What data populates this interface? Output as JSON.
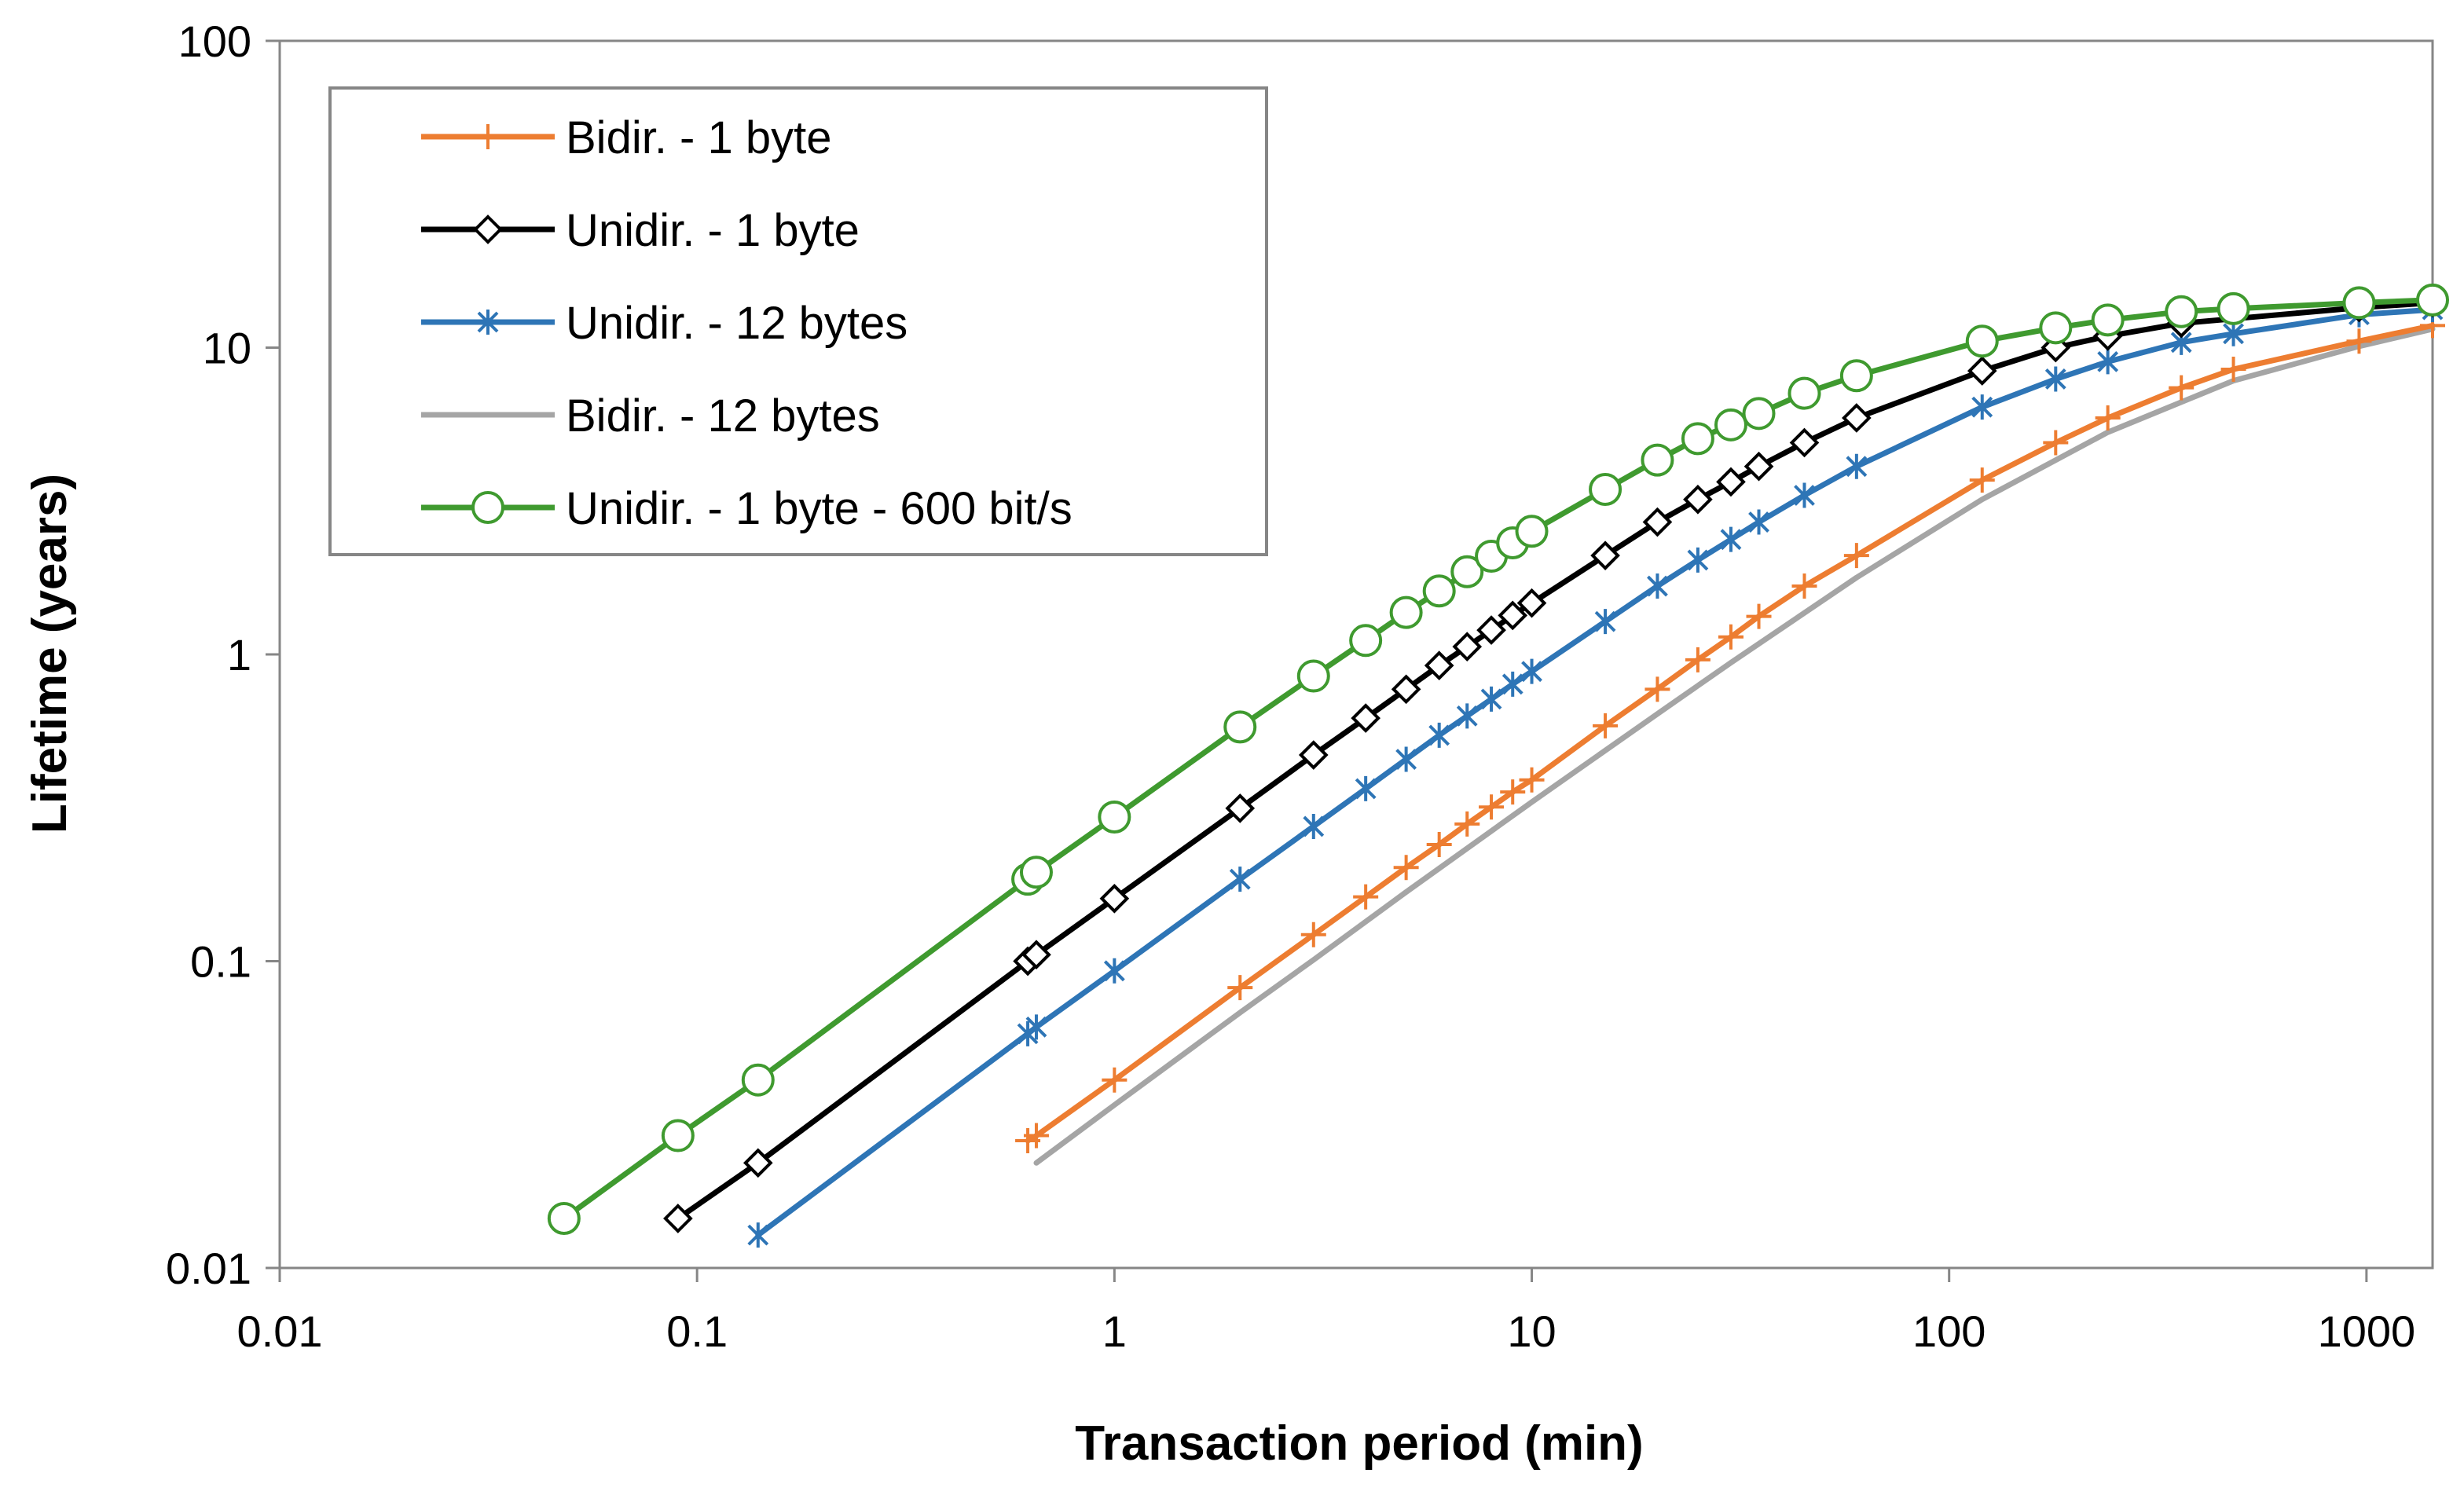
{
  "chart_data": {
    "type": "line",
    "title": "",
    "xlabel": "Transaction period (min)",
    "ylabel": "Lifetime (years)",
    "x_scale": "log",
    "y_scale": "log",
    "xlim": [
      0.01,
      1440
    ],
    "ylim": [
      0.01,
      100
    ],
    "x_tick_labels": [
      "0.01",
      "0.1",
      "1",
      "10",
      "100",
      "1000"
    ],
    "x_tick_values": [
      0.01,
      0.1,
      1,
      10,
      100,
      1000
    ],
    "y_tick_labels": [
      "0.01",
      "0.1",
      "1",
      "10",
      "100"
    ],
    "y_tick_values": [
      0.01,
      0.1,
      1,
      10,
      100
    ],
    "grid": false,
    "legend_position": "top-left",
    "series": [
      {
        "name": "Bidir. - 1 byte",
        "color": "#ED7D31",
        "marker": "plus",
        "x": [
          0.62,
          0.65,
          1,
          2,
          3,
          4,
          5,
          6,
          7,
          8,
          9,
          10,
          15,
          20,
          25,
          30,
          35,
          45,
          60,
          120,
          180,
          240,
          360,
          480,
          960,
          1440
        ],
        "y": [
          0.026,
          0.027,
          0.041,
          0.082,
          0.122,
          0.162,
          0.202,
          0.24,
          0.28,
          0.318,
          0.356,
          0.39,
          0.585,
          0.77,
          0.96,
          1.14,
          1.33,
          1.67,
          2.1,
          3.7,
          4.9,
          5.9,
          7.4,
          8.5,
          10.5,
          11.8
        ]
      },
      {
        "name": "Unidir. - 1 byte",
        "color": "#000000",
        "marker": "diamond",
        "x": [
          0.09,
          0.14,
          0.62,
          0.65,
          1,
          2,
          3,
          4,
          5,
          6,
          7,
          8,
          9,
          10,
          15,
          20,
          25,
          30,
          35,
          45,
          60,
          120,
          180,
          240,
          360,
          960,
          1440
        ],
        "y": [
          0.0145,
          0.022,
          0.1,
          0.105,
          0.16,
          0.315,
          0.47,
          0.62,
          0.77,
          0.92,
          1.06,
          1.2,
          1.34,
          1.47,
          2.1,
          2.7,
          3.2,
          3.65,
          4.1,
          4.9,
          5.9,
          8.4,
          10,
          10.9,
          12,
          13.5,
          14
        ]
      },
      {
        "name": "Unidir. - 12 bytes",
        "color": "#2E75B6",
        "marker": "asterisk",
        "x": [
          0.14,
          0.62,
          0.65,
          1,
          2,
          3,
          4,
          5,
          6,
          7,
          8,
          9,
          10,
          15,
          20,
          25,
          30,
          35,
          45,
          60,
          120,
          180,
          240,
          360,
          480,
          960,
          1440
        ],
        "y": [
          0.0128,
          0.058,
          0.061,
          0.093,
          0.185,
          0.275,
          0.365,
          0.455,
          0.545,
          0.63,
          0.715,
          0.8,
          0.88,
          1.28,
          1.67,
          2.03,
          2.37,
          2.7,
          3.3,
          4.1,
          6.4,
          7.9,
          9,
          10.4,
          11.1,
          12.8,
          13.3
        ]
      },
      {
        "name": "Bidir. - 12 bytes",
        "color": "#A5A5A5",
        "marker": "none",
        "x": [
          0.65,
          1,
          2,
          3,
          5,
          10,
          20,
          30,
          60,
          120,
          240,
          480,
          960,
          1440
        ],
        "y": [
          0.022,
          0.034,
          0.068,
          0.101,
          0.168,
          0.33,
          0.64,
          0.94,
          1.78,
          3.2,
          5.3,
          7.8,
          10.1,
          11.5
        ]
      },
      {
        "name": "Unidir. - 1 byte - 600 bit/s",
        "color": "#3F9A2F",
        "marker": "circle",
        "x": [
          0.048,
          0.09,
          0.14,
          0.62,
          0.65,
          1,
          2,
          3,
          4,
          5,
          6,
          7,
          8,
          9,
          10,
          15,
          20,
          25,
          30,
          35,
          45,
          60,
          120,
          180,
          240,
          360,
          480,
          960,
          1440
        ],
        "y": [
          0.0145,
          0.027,
          0.041,
          0.185,
          0.195,
          0.295,
          0.58,
          0.85,
          1.11,
          1.37,
          1.61,
          1.86,
          2.09,
          2.31,
          2.52,
          3.45,
          4.3,
          5.05,
          5.6,
          6.1,
          7.1,
          8.1,
          10.5,
          11.6,
          12.3,
          13.1,
          13.4,
          14,
          14.3
        ]
      }
    ]
  }
}
